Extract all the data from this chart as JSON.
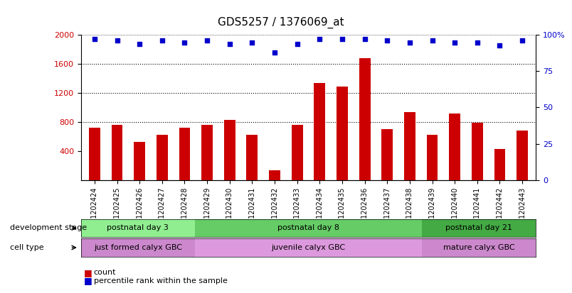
{
  "title": "GDS5257 / 1376069_at",
  "samples": [
    "GSM1202424",
    "GSM1202425",
    "GSM1202426",
    "GSM1202427",
    "GSM1202428",
    "GSM1202429",
    "GSM1202430",
    "GSM1202431",
    "GSM1202432",
    "GSM1202433",
    "GSM1202434",
    "GSM1202435",
    "GSM1202436",
    "GSM1202437",
    "GSM1202438",
    "GSM1202439",
    "GSM1202440",
    "GSM1202441",
    "GSM1202442",
    "GSM1202443"
  ],
  "counts": [
    720,
    760,
    530,
    620,
    720,
    760,
    830,
    620,
    130,
    760,
    1340,
    1290,
    1680,
    700,
    940,
    620,
    920,
    790,
    430,
    680
  ],
  "percentile_ranks": [
    97,
    96,
    94,
    96,
    95,
    96,
    94,
    95,
    88,
    94,
    97,
    97,
    97,
    96,
    95,
    96,
    95,
    95,
    93,
    96
  ],
  "bar_color": "#cc0000",
  "dot_color": "#0000cc",
  "ylim_left": [
    0,
    2000
  ],
  "ylim_right": [
    0,
    100
  ],
  "yticks_left": [
    400,
    800,
    1200,
    1600,
    2000
  ],
  "yticks_right": [
    0,
    25,
    50,
    75,
    100
  ],
  "grid_values": [
    800,
    1200,
    1600
  ],
  "development_stages": [
    {
      "label": "postnatal day 3",
      "start": 0,
      "end": 5,
      "color": "#90ee90"
    },
    {
      "label": "postnatal day 8",
      "start": 5,
      "end": 15,
      "color": "#66cc66"
    },
    {
      "label": "postnatal day 21",
      "start": 15,
      "end": 20,
      "color": "#44aa44"
    }
  ],
  "cell_types": [
    {
      "label": "just formed calyx GBC",
      "start": 0,
      "end": 5,
      "color": "#cc88cc"
    },
    {
      "label": "juvenile calyx GBC",
      "start": 5,
      "end": 15,
      "color": "#dd99dd"
    },
    {
      "label": "mature calyx GBC",
      "start": 15,
      "end": 20,
      "color": "#cc88cc"
    }
  ],
  "dev_stage_label": "development stage",
  "cell_type_label": "cell type",
  "legend_count": "count",
  "legend_percentile": "percentile rank within the sample",
  "background_color": "#ffffff",
  "title_fontsize": 11,
  "tick_fontsize": 7,
  "label_fontsize": 9
}
